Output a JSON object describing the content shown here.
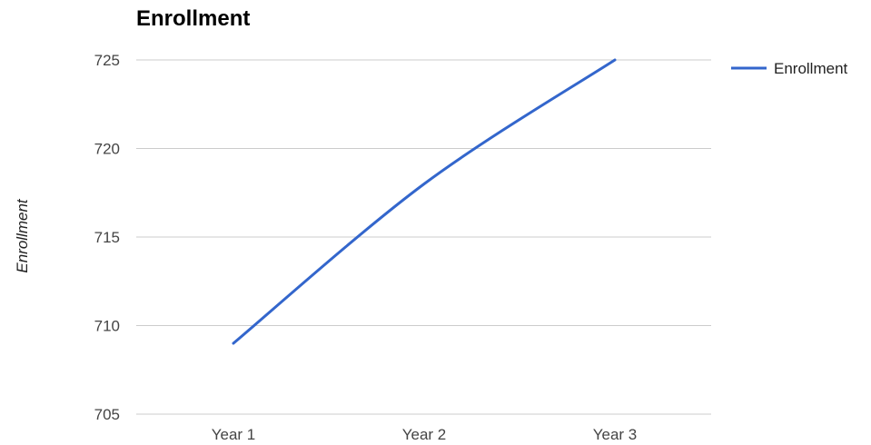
{
  "chart_data": {
    "type": "line",
    "title": "Enrollment",
    "xlabel": "",
    "ylabel": "Enrollment",
    "categories": [
      "Year 1",
      "Year 2",
      "Year 3"
    ],
    "series": [
      {
        "name": "Enrollment",
        "color": "#3366cc",
        "values": [
          709,
          718,
          725
        ]
      }
    ],
    "ylim": [
      705,
      725
    ],
    "yticks": [
      705,
      710,
      715,
      720,
      725
    ],
    "grid": true,
    "legend": "right",
    "curve": "smooth"
  }
}
